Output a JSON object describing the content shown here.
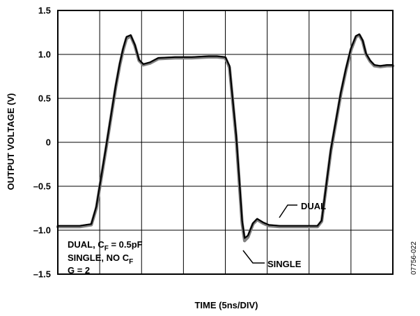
{
  "chart_data": {
    "type": "line",
    "title": "",
    "xlabel": "TIME (5ns/DIV)",
    "ylabel": "OUTPUT VOLTAGE (V)",
    "x_unit": "ns",
    "xlim": [
      0,
      40
    ],
    "ylim": [
      -1.5,
      1.5
    ],
    "x_ticks": [
      0,
      5,
      10,
      15,
      20,
      25,
      30,
      35,
      40
    ],
    "y_ticks": [
      -1.5,
      -1.0,
      -0.5,
      0,
      0.5,
      1.0,
      1.5
    ],
    "y_tick_labels": [
      "–1.5",
      "–1.0",
      "–0.5",
      "0",
      "0.5",
      "1.0",
      "1.5"
    ],
    "grid": true,
    "series": [
      {
        "name": "SINGLE",
        "color": "#808080",
        "x": [
          0,
          2.6,
          4.0,
          4.6,
          5.8,
          6.9,
          7.4,
          7.8,
          8.2,
          8.7,
          9.2,
          9.7,
          10.2,
          11.0,
          12.0,
          14.0,
          16.0,
          18.0,
          19.0,
          20.0,
          20.5,
          21.3,
          21.7,
          22.0,
          22.3,
          22.7,
          23.3,
          23.8,
          24.5,
          25.2,
          26.5,
          28.0,
          30.0,
          31.0,
          31.5,
          32.6,
          33.8,
          34.4,
          35.0,
          35.6,
          36.0,
          36.4,
          36.8,
          37.3,
          37.8,
          38.5,
          39.3,
          40.0
        ],
        "y": [
          -0.96,
          -0.96,
          -0.94,
          -0.75,
          -0.05,
          0.62,
          0.88,
          1.05,
          1.18,
          1.21,
          1.1,
          0.93,
          0.88,
          0.9,
          0.95,
          0.96,
          0.96,
          0.97,
          0.97,
          0.96,
          0.85,
          0.05,
          -0.5,
          -0.92,
          -1.12,
          -1.08,
          -0.93,
          -0.88,
          -0.92,
          -0.95,
          -0.96,
          -0.96,
          -0.96,
          -0.96,
          -0.9,
          -0.1,
          0.55,
          0.82,
          1.05,
          1.2,
          1.22,
          1.15,
          1.0,
          0.92,
          0.87,
          0.86,
          0.87,
          0.87
        ]
      },
      {
        "name": "DUAL",
        "color": "#000000",
        "x": [
          0,
          2.6,
          4.0,
          4.6,
          5.8,
          6.9,
          7.4,
          7.8,
          8.2,
          8.7,
          9.2,
          9.7,
          10.2,
          11.0,
          12.0,
          14.0,
          16.0,
          18.0,
          19.0,
          20.0,
          20.5,
          21.3,
          21.7,
          22.0,
          22.3,
          22.7,
          23.3,
          23.8,
          24.5,
          25.2,
          26.5,
          28.0,
          30.0,
          31.0,
          31.5,
          32.6,
          33.8,
          34.4,
          35.0,
          35.6,
          36.0,
          36.4,
          36.8,
          37.3,
          37.8,
          38.5,
          39.3,
          40.0
        ],
        "y": [
          -0.95,
          -0.95,
          -0.93,
          -0.73,
          -0.03,
          0.64,
          0.9,
          1.07,
          1.2,
          1.22,
          1.11,
          0.94,
          0.89,
          0.91,
          0.96,
          0.97,
          0.97,
          0.98,
          0.98,
          0.97,
          0.87,
          0.08,
          -0.46,
          -0.89,
          -1.09,
          -1.06,
          -0.92,
          -0.87,
          -0.91,
          -0.94,
          -0.95,
          -0.95,
          -0.95,
          -0.95,
          -0.89,
          -0.08,
          0.57,
          0.84,
          1.07,
          1.21,
          1.23,
          1.16,
          1.01,
          0.93,
          0.88,
          0.87,
          0.88,
          0.88
        ]
      }
    ],
    "annotations": {
      "dual_label": "DUAL",
      "single_label": "SINGLE",
      "conditions_line1": "DUAL, C",
      "conditions_line1_sub": "F",
      "conditions_line1_tail": " = 0.5pF",
      "conditions_line2": "SINGLE, NO C",
      "conditions_line2_sub": "F",
      "conditions_line3": "G = 2",
      "figure_id": "07756-022"
    }
  }
}
